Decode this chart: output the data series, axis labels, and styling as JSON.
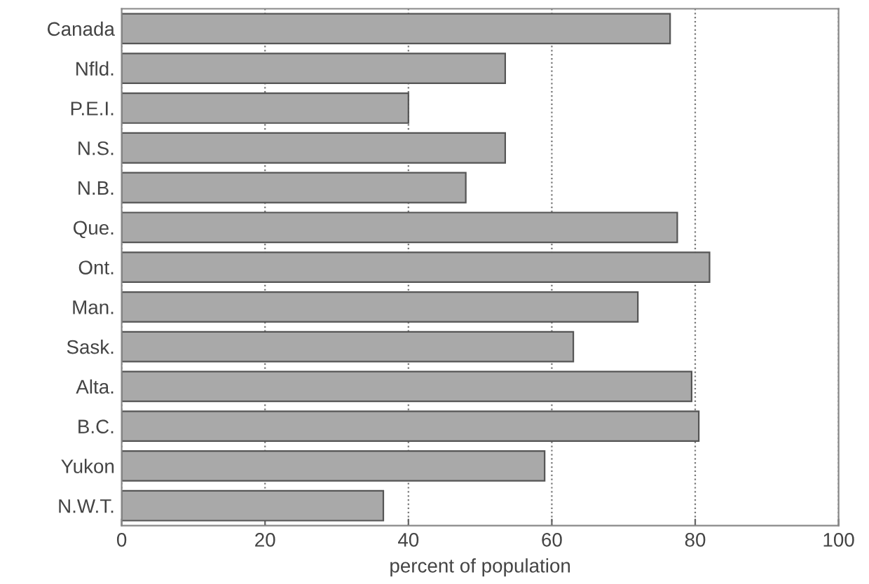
{
  "chart_data": {
    "type": "bar",
    "orientation": "horizontal",
    "xlabel": "percent of population",
    "categories": [
      "Canada",
      "Nfld.",
      "P.E.I.",
      "N.S.",
      "N.B.",
      "Que.",
      "Ont.",
      "Man.",
      "Sask.",
      "Alta.",
      "B.C.",
      "Yukon",
      "N.W.T."
    ],
    "values": [
      76.5,
      53.5,
      40,
      53.5,
      48,
      77.5,
      82,
      72,
      63,
      79.5,
      80.5,
      59,
      36.5
    ],
    "color": "#a9a9a9",
    "xlim": [
      0,
      100
    ],
    "xticks": [
      0,
      20,
      40,
      60,
      80,
      100
    ],
    "grid": "x"
  }
}
